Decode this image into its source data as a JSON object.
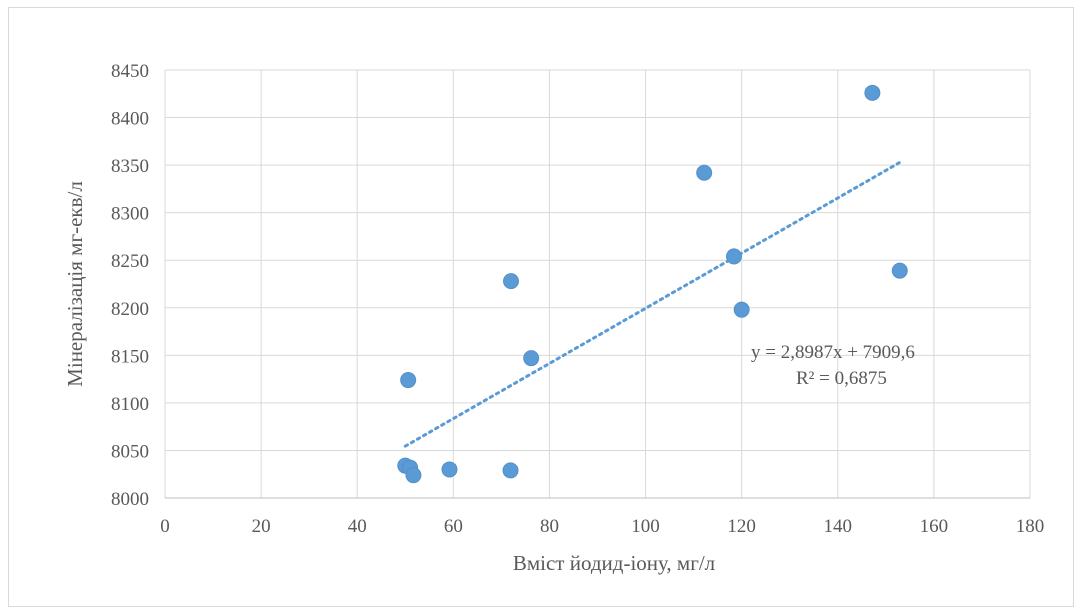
{
  "chart_data": {
    "type": "scatter",
    "xlabel": "Вміст  йодид-іону, мг/л",
    "ylabel": "Мінералізація мг-екв/л",
    "xlim": [
      0,
      180
    ],
    "ylim": [
      8000,
      8450
    ],
    "x_ticks": [
      "0",
      "20",
      "40",
      "60",
      "80",
      "100",
      "120",
      "140",
      "160",
      "180"
    ],
    "y_ticks": [
      "8000",
      "8050",
      "8100",
      "8150",
      "8200",
      "8250",
      "8300",
      "8350",
      "8400",
      "8450"
    ],
    "grid": true,
    "series": [
      {
        "points": [
          {
            "x": 50.0,
            "y": 8034
          },
          {
            "x": 50.6,
            "y": 8124
          },
          {
            "x": 51.0,
            "y": 8032
          },
          {
            "x": 51.7,
            "y": 8024
          },
          {
            "x": 59.2,
            "y": 8030
          },
          {
            "x": 71.9,
            "y": 8029
          },
          {
            "x": 72.0,
            "y": 8228
          },
          {
            "x": 76.2,
            "y": 8147
          },
          {
            "x": 112.2,
            "y": 8342
          },
          {
            "x": 118.4,
            "y": 8254
          },
          {
            "x": 120.0,
            "y": 8198
          },
          {
            "x": 147.2,
            "y": 8426
          },
          {
            "x": 152.9,
            "y": 8239
          }
        ]
      }
    ],
    "trendline": {
      "type": "linear",
      "style": "dotted",
      "slope": 2.8987,
      "intercept": 7909.6,
      "x_range": [
        50.0,
        152.9
      ],
      "equation_label": "y = 2,8987x + 7909,6",
      "r2_label": "R² = 0,6875"
    },
    "colors": {
      "marker": "#5b9bd5",
      "trendline": "#5b9bd5",
      "grid": "#d9d9d9",
      "axis": "#bfbfbf"
    }
  }
}
